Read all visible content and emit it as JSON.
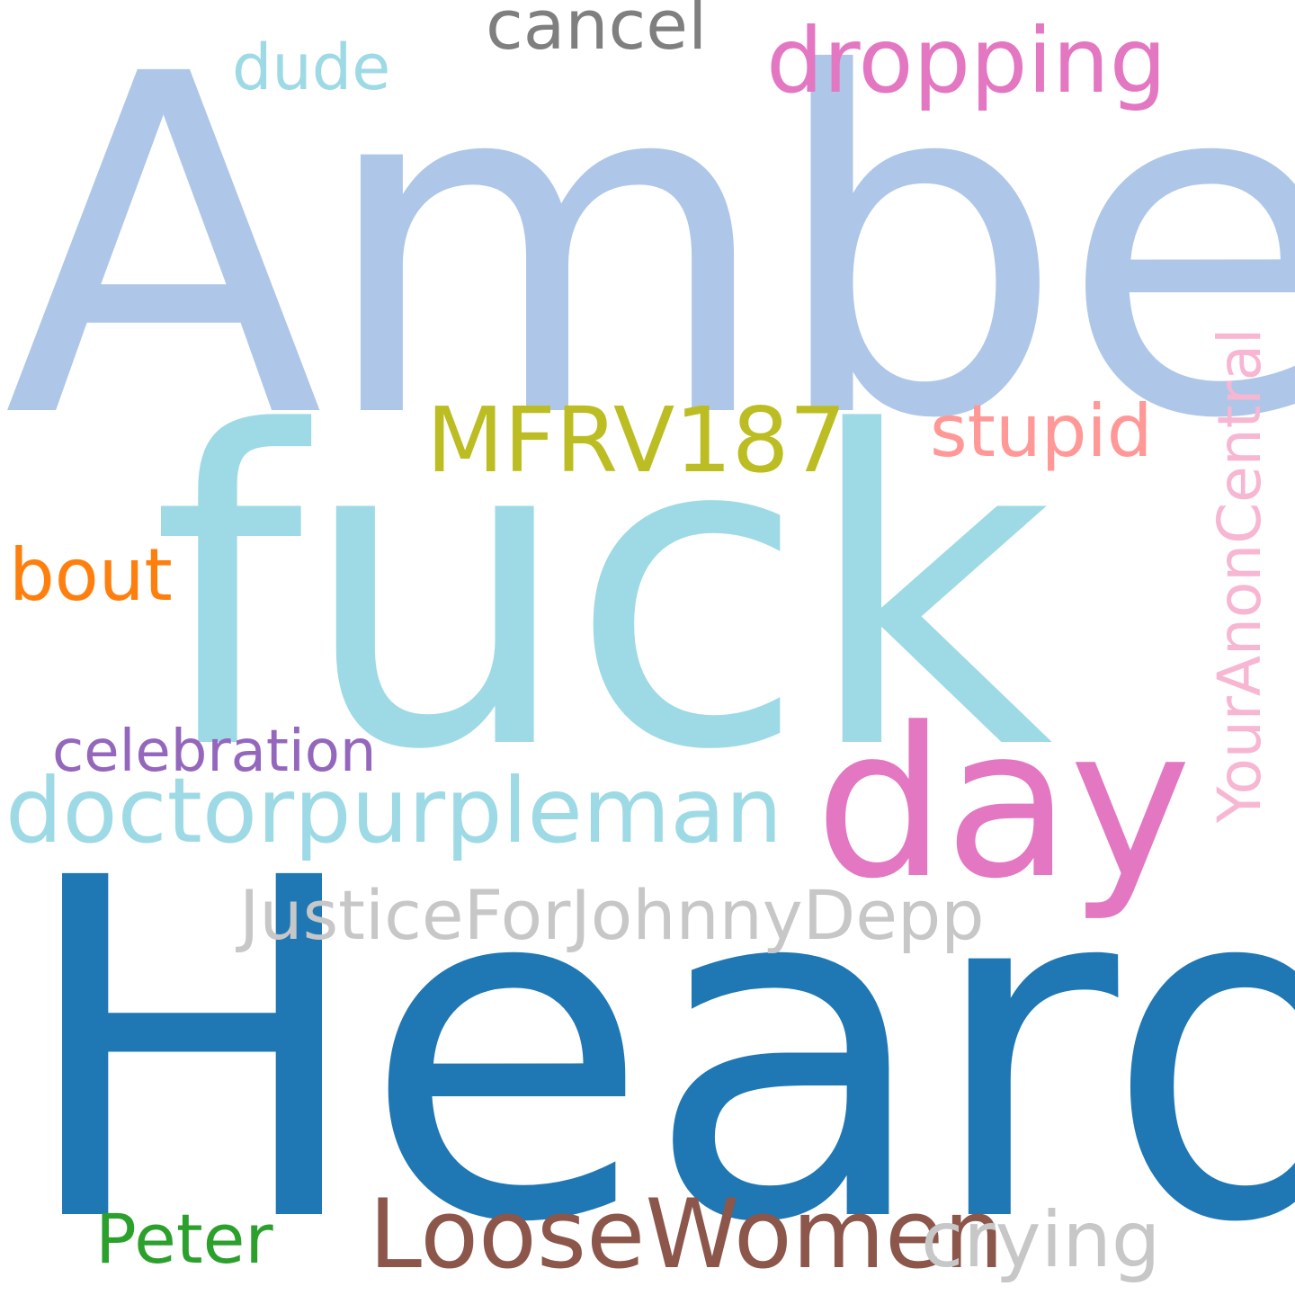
{
  "cloud": {
    "words": [
      {
        "key": "amber",
        "text": "Amber",
        "color": "#aec7e8"
      },
      {
        "key": "fuck",
        "text": "fuck",
        "color": "#9edae5"
      },
      {
        "key": "heard",
        "text": "Heard",
        "color": "#1f77b4"
      },
      {
        "key": "day",
        "text": "day",
        "color": "#e377c2"
      },
      {
        "key": "dropping",
        "text": "dropping",
        "color": "#e377c2"
      },
      {
        "key": "cancel",
        "text": "cancel",
        "color": "#7f7f7f"
      },
      {
        "key": "dude",
        "text": "dude",
        "color": "#9edae5"
      },
      {
        "key": "mfrv187",
        "text": "MFRV187",
        "color": "#bcbd22"
      },
      {
        "key": "stupid",
        "text": "stupid",
        "color": "#ff9896"
      },
      {
        "key": "bout",
        "text": "bout",
        "color": "#ff7f0e"
      },
      {
        "key": "celebration",
        "text": "celebration",
        "color": "#9467bd"
      },
      {
        "key": "doctor",
        "text": "doctorpurpleman",
        "color": "#9edae5"
      },
      {
        "key": "justice",
        "text": "JusticeForJohnnyDepp",
        "color": "#c7c7c7"
      },
      {
        "key": "peter",
        "text": "Peter",
        "color": "#2ca02c"
      },
      {
        "key": "loose",
        "text": "LooseWomen",
        "color": "#8c564b"
      },
      {
        "key": "crying",
        "text": "crying",
        "color": "#c7c7c7"
      },
      {
        "key": "youranon",
        "text": "YourAnonCentral",
        "color": "#f7b6d2"
      }
    ]
  }
}
